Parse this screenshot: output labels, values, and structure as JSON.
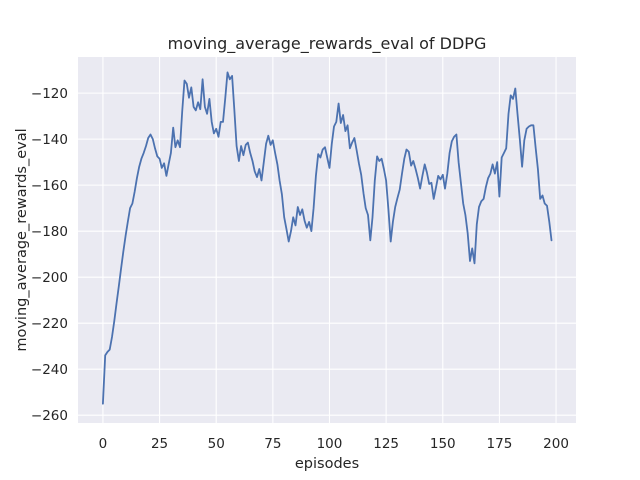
{
  "chart_data": {
    "type": "line",
    "title": "moving_average_rewards_eval of DDPG",
    "xlabel": "episodes",
    "ylabel": "moving_average_rewards_eval",
    "x_ticks": [
      0,
      25,
      50,
      75,
      100,
      125,
      150,
      175,
      200
    ],
    "y_ticks": [
      -120,
      -140,
      -160,
      -180,
      -200,
      -220,
      -240,
      -260
    ],
    "xlim": [
      -11,
      208.8
    ],
    "ylim": [
      -263.4,
      -104.3
    ],
    "grid": true,
    "legend_position": "none",
    "colors": {
      "figure_background": "#ffffff",
      "axes_background": "#eaeaf2",
      "grid": "#ffffff",
      "line": "#4c72b0",
      "text": "#262626"
    },
    "series": [
      {
        "name": "moving_average_rewards_eval",
        "points": [
          [
            0,
            -255
          ],
          [
            1,
            -234
          ],
          [
            2,
            -232.5
          ],
          [
            3,
            -231.5
          ],
          [
            4,
            -226
          ],
          [
            5,
            -219
          ],
          [
            6,
            -211.5
          ],
          [
            7,
            -204
          ],
          [
            8,
            -196.5
          ],
          [
            9,
            -189
          ],
          [
            10,
            -182
          ],
          [
            11,
            -176
          ],
          [
            12,
            -170
          ],
          [
            13,
            -168
          ],
          [
            14,
            -163
          ],
          [
            15,
            -157
          ],
          [
            16,
            -152
          ],
          [
            17,
            -148.5
          ],
          [
            18,
            -146
          ],
          [
            19,
            -143
          ],
          [
            20,
            -139.5
          ],
          [
            21,
            -138
          ],
          [
            22,
            -140
          ],
          [
            23,
            -144
          ],
          [
            24,
            -147.5
          ],
          [
            25,
            -148.5
          ],
          [
            26,
            -152.5
          ],
          [
            27,
            -150.5
          ],
          [
            28,
            -156
          ],
          [
            29,
            -151
          ],
          [
            30,
            -146
          ],
          [
            31,
            -135
          ],
          [
            32,
            -143.5
          ],
          [
            33,
            -140.5
          ],
          [
            34,
            -143.5
          ],
          [
            35,
            -128
          ],
          [
            36,
            -114.5
          ],
          [
            37,
            -116
          ],
          [
            38,
            -122
          ],
          [
            39,
            -117.5
          ],
          [
            40,
            -126
          ],
          [
            41,
            -127.5
          ],
          [
            42,
            -124
          ],
          [
            43,
            -127
          ],
          [
            44,
            -114
          ],
          [
            45,
            -126
          ],
          [
            46,
            -129
          ],
          [
            47,
            -122.5
          ],
          [
            48,
            -132.5
          ],
          [
            49,
            -137.5
          ],
          [
            50,
            -135.5
          ],
          [
            51,
            -139
          ],
          [
            52,
            -132.5
          ],
          [
            53,
            -132.5
          ],
          [
            54,
            -122
          ],
          [
            55,
            -111
          ],
          [
            56,
            -114
          ],
          [
            57,
            -112.5
          ],
          [
            58,
            -127
          ],
          [
            59,
            -143
          ],
          [
            60,
            -149.5
          ],
          [
            61,
            -143
          ],
          [
            62,
            -147
          ],
          [
            63,
            -142.5
          ],
          [
            64,
            -141.5
          ],
          [
            65,
            -146
          ],
          [
            66,
            -149.5
          ],
          [
            67,
            -154
          ],
          [
            68,
            -156.5
          ],
          [
            69,
            -153
          ],
          [
            70,
            -158
          ],
          [
            71,
            -150
          ],
          [
            72,
            -142
          ],
          [
            73,
            -138.5
          ],
          [
            74,
            -142.5
          ],
          [
            75,
            -140.5
          ],
          [
            76,
            -146
          ],
          [
            77,
            -151
          ],
          [
            78,
            -158
          ],
          [
            79,
            -164
          ],
          [
            80,
            -174
          ],
          [
            81,
            -179
          ],
          [
            82,
            -184.5
          ],
          [
            83,
            -180
          ],
          [
            84,
            -174
          ],
          [
            85,
            -177.5
          ],
          [
            86,
            -169.5
          ],
          [
            87,
            -173
          ],
          [
            88,
            -170.5
          ],
          [
            89,
            -175.5
          ],
          [
            90,
            -178.5
          ],
          [
            91,
            -176
          ],
          [
            92,
            -180
          ],
          [
            93,
            -170
          ],
          [
            94,
            -156
          ],
          [
            95,
            -146.5
          ],
          [
            96,
            -148
          ],
          [
            97,
            -144.5
          ],
          [
            98,
            -143.5
          ],
          [
            99,
            -148
          ],
          [
            100,
            -152.5
          ],
          [
            101,
            -142
          ],
          [
            102,
            -134.5
          ],
          [
            103,
            -132.5
          ],
          [
            104,
            -124.5
          ],
          [
            105,
            -133
          ],
          [
            106,
            -129.5
          ],
          [
            107,
            -136.5
          ],
          [
            108,
            -134
          ],
          [
            109,
            -144
          ],
          [
            110,
            -141.5
          ],
          [
            111,
            -139.5
          ],
          [
            112,
            -145
          ],
          [
            113,
            -150.5
          ],
          [
            114,
            -155.5
          ],
          [
            115,
            -163.5
          ],
          [
            116,
            -170
          ],
          [
            117,
            -173
          ],
          [
            118,
            -184
          ],
          [
            119,
            -174
          ],
          [
            120,
            -158
          ],
          [
            121,
            -147.5
          ],
          [
            122,
            -149.5
          ],
          [
            123,
            -148.5
          ],
          [
            124,
            -153
          ],
          [
            125,
            -158
          ],
          [
            126,
            -170.5
          ],
          [
            127,
            -184.5
          ],
          [
            128,
            -176
          ],
          [
            129,
            -169.5
          ],
          [
            130,
            -165.5
          ],
          [
            131,
            -162
          ],
          [
            132,
            -155
          ],
          [
            133,
            -148.5
          ],
          [
            134,
            -144.5
          ],
          [
            135,
            -145.5
          ],
          [
            136,
            -151.5
          ],
          [
            137,
            -149.5
          ],
          [
            138,
            -153
          ],
          [
            139,
            -157
          ],
          [
            140,
            -161.5
          ],
          [
            141,
            -156
          ],
          [
            142,
            -151
          ],
          [
            143,
            -154.5
          ],
          [
            144,
            -159.5
          ],
          [
            145,
            -159
          ],
          [
            146,
            -166
          ],
          [
            147,
            -161
          ],
          [
            148,
            -156
          ],
          [
            149,
            -157.5
          ],
          [
            150,
            -155.5
          ],
          [
            151,
            -161.5
          ],
          [
            152,
            -155
          ],
          [
            153,
            -146
          ],
          [
            154,
            -141
          ],
          [
            155,
            -139
          ],
          [
            156,
            -138
          ],
          [
            157,
            -150
          ],
          [
            158,
            -159
          ],
          [
            159,
            -168
          ],
          [
            160,
            -173
          ],
          [
            161,
            -181
          ],
          [
            162,
            -193
          ],
          [
            163,
            -187.5
          ],
          [
            164,
            -194
          ],
          [
            165,
            -177
          ],
          [
            166,
            -169.5
          ],
          [
            167,
            -167
          ],
          [
            168,
            -166
          ],
          [
            169,
            -161
          ],
          [
            170,
            -157
          ],
          [
            171,
            -155
          ],
          [
            172,
            -151
          ],
          [
            173,
            -155
          ],
          [
            174,
            -150
          ],
          [
            175,
            -165
          ],
          [
            176,
            -148
          ],
          [
            177,
            -146
          ],
          [
            178,
            -144
          ],
          [
            179,
            -129
          ],
          [
            180,
            -121
          ],
          [
            181,
            -122.5
          ],
          [
            182,
            -118
          ],
          [
            183,
            -129
          ],
          [
            184,
            -140
          ],
          [
            185,
            -152
          ],
          [
            186,
            -140.5
          ],
          [
            187,
            -135.5
          ],
          [
            188,
            -134.5
          ],
          [
            189,
            -134
          ],
          [
            190,
            -134
          ],
          [
            191,
            -144
          ],
          [
            192,
            -153
          ],
          [
            193,
            -166
          ],
          [
            194,
            -164.5
          ],
          [
            195,
            -168
          ],
          [
            196,
            -169
          ],
          [
            197,
            -176
          ],
          [
            198,
            -184
          ]
        ]
      }
    ]
  }
}
